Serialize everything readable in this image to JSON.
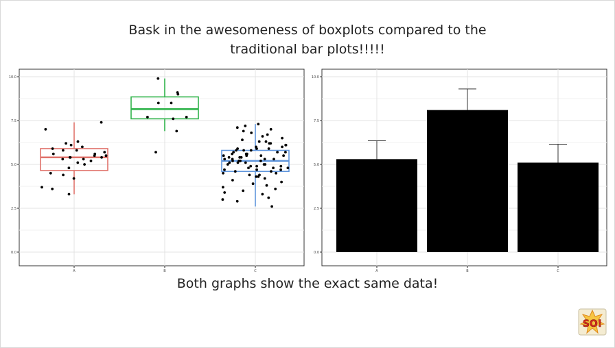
{
  "slide": {
    "title_line1": "Bask in the awesomeness of boxplots compared to the",
    "title_line2": "traditional bar plots!!!!!",
    "caption": "Both graphs show the exact same data!",
    "logo_text": "SO!"
  },
  "colors": {
    "A": "#e0726b",
    "B": "#2fb34a",
    "C": "#5f95dc",
    "bar": "#000000",
    "points": "#000000"
  },
  "chart_data": [
    {
      "type": "box",
      "categories": [
        "A",
        "B",
        "C"
      ],
      "ylim": [
        0,
        10
      ],
      "yticks": [
        "0.0",
        "2.5",
        "5.0",
        "7.5",
        "10.0"
      ],
      "grid": true,
      "boxes": [
        {
          "category": "A",
          "min": 3.3,
          "q1": 4.65,
          "median": 5.4,
          "q3": 5.9,
          "max": 7.4
        },
        {
          "category": "B",
          "min": 6.9,
          "q1": 7.6,
          "median": 8.15,
          "q3": 8.85,
          "max": 9.9
        },
        {
          "category": "C",
          "min": 2.6,
          "q1": 4.6,
          "median": 5.2,
          "q3": 5.8,
          "max": 7.3
        }
      ],
      "points": [
        {
          "category": "A",
          "values": [
            7.4,
            7.0,
            6.3,
            6.2,
            6.1,
            6.0,
            5.9,
            5.8,
            5.8,
            5.7,
            5.6,
            5.6,
            5.5,
            5.5,
            5.4,
            5.4,
            5.4,
            5.3,
            5.3,
            5.2,
            5.1,
            5.0,
            4.8,
            4.5,
            4.4,
            4.2,
            3.7,
            3.6,
            3.3
          ]
        },
        {
          "category": "B",
          "values": [
            9.9,
            9.1,
            9.0,
            8.5,
            8.5,
            7.7,
            7.7,
            7.6,
            6.9,
            5.7
          ]
        },
        {
          "category": "C",
          "values": [
            7.3,
            7.2,
            7.1,
            7.0,
            6.9,
            6.8,
            6.7,
            6.6,
            6.5,
            6.4,
            6.3,
            6.3,
            6.2,
            6.2,
            6.1,
            6.1,
            6.0,
            6.0,
            5.9,
            5.9,
            5.9,
            5.8,
            5.8,
            5.8,
            5.7,
            5.7,
            5.7,
            5.6,
            5.6,
            5.6,
            5.5,
            5.5,
            5.5,
            5.5,
            5.4,
            5.4,
            5.4,
            5.3,
            5.3,
            5.3,
            5.3,
            5.2,
            5.2,
            5.2,
            5.2,
            5.1,
            5.1,
            5.1,
            5.0,
            5.0,
            5.0,
            4.9,
            4.9,
            4.9,
            4.8,
            4.8,
            4.8,
            4.7,
            4.7,
            4.7,
            4.6,
            4.6,
            4.5,
            4.5,
            4.4,
            4.4,
            4.3,
            4.3,
            4.2,
            4.1,
            4.0,
            3.9,
            3.8,
            3.7,
            3.6,
            3.5,
            3.4,
            3.3,
            3.1,
            3.0,
            2.9,
            2.6
          ]
        }
      ]
    },
    {
      "type": "bar",
      "categories": [
        "A",
        "B",
        "C"
      ],
      "values": [
        5.3,
        8.1,
        5.1
      ],
      "error_upper": [
        6.35,
        9.3,
        6.15
      ],
      "ylim": [
        0,
        10
      ],
      "yticks": [
        "0.0",
        "2.5",
        "5.0",
        "7.5",
        "10.0"
      ],
      "grid": true
    }
  ]
}
